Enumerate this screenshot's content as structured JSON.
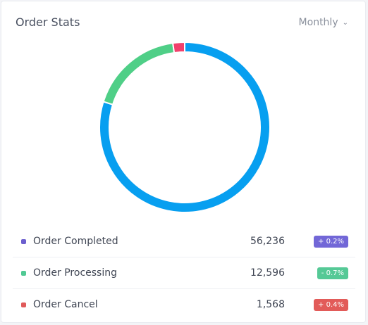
{
  "card": {
    "title": "Order Stats",
    "period_label": "Monthly"
  },
  "chart_data": {
    "type": "pie",
    "values": [
      56236,
      12596,
      1568
    ],
    "colors": [
      "#079ff0",
      "#4fcf87",
      "#f1416c"
    ]
  },
  "legend": [
    {
      "label": "Order Completed",
      "value": "56,236",
      "change": "+ 0.2%",
      "dot_color": "#6c5fce",
      "badge_color": "#7267d7"
    },
    {
      "label": "Order Processing",
      "value": "12,596",
      "change": "- 0.7%",
      "dot_color": "#51c994",
      "badge_color": "#55c996"
    },
    {
      "label": "Order Cancel",
      "value": "1,568",
      "change": "+ 0.4%",
      "dot_color": "#e05a5a",
      "badge_color": "#e25b59"
    }
  ]
}
